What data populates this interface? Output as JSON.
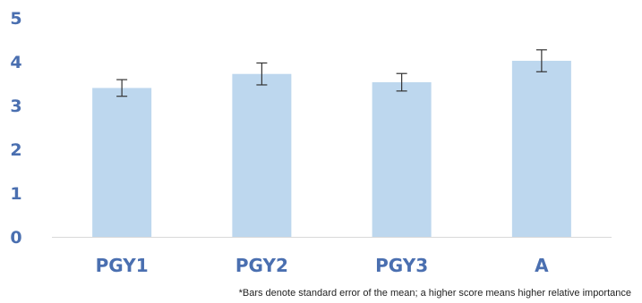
{
  "chart_data": {
    "type": "bar",
    "categories": [
      "PGY1",
      "PGY2",
      "PGY3",
      "A"
    ],
    "values": [
      3.4,
      3.72,
      3.53,
      4.02
    ],
    "error": [
      0.19,
      0.25,
      0.2,
      0.25
    ],
    "ylim": [
      0,
      5
    ],
    "yticks": [
      "0",
      "1",
      "2",
      "3",
      "4",
      "5"
    ],
    "grid": false,
    "colors": {
      "bar": "#bdd7ee",
      "error": "#333333",
      "axis": "#d9d9d9",
      "tick": "#4a6fb0"
    }
  },
  "footnote": "*Bars denote standard error of the mean; a higher score means higher relative importance"
}
